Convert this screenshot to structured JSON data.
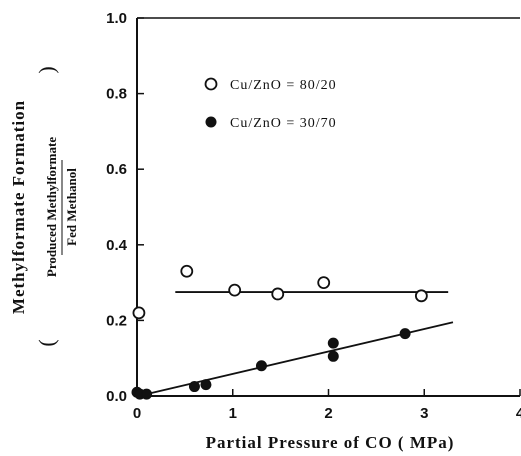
{
  "chart_data": {
    "type": "scatter",
    "title": "",
    "xlabel": "Partial Pressure of CO ( MPa)",
    "ylabel": "Methylformate Formation",
    "ylabel_ratio": {
      "open": "(",
      "numerator": "Produced Methylformate",
      "denominator": "Fed Methanol",
      "close": ")"
    },
    "xlim": [
      0,
      4
    ],
    "ylim": [
      0,
      1.0
    ],
    "xticks": [
      "0",
      "1",
      "2",
      "3",
      "4"
    ],
    "yticks": [
      "0.0",
      "0.2",
      "0.4",
      "0.6",
      "0.8",
      "1.0"
    ],
    "grid": false,
    "legend_position": "top-center",
    "series": [
      {
        "name": "Cu/ZnO = 80/20",
        "marker": "open-circle",
        "color": "#111111",
        "x": [
          0.02,
          0.52,
          1.02,
          1.47,
          1.95,
          2.97
        ],
        "y": [
          0.22,
          0.33,
          0.28,
          0.27,
          0.3,
          0.265
        ],
        "fit_line": {
          "x": [
            0.4,
            3.25
          ],
          "y": [
            0.275,
            0.275
          ]
        }
      },
      {
        "name": "Cu/ZnO = 30/70",
        "marker": "filled-circle",
        "color": "#111111",
        "x": [
          0.0,
          0.03,
          0.1,
          0.6,
          0.72,
          1.3,
          2.05,
          2.05,
          2.8
        ],
        "y": [
          0.01,
          0.005,
          0.005,
          0.025,
          0.03,
          0.08,
          0.14,
          0.105,
          0.165
        ],
        "fit_line": {
          "x": [
            0.1,
            3.3
          ],
          "y": [
            0.005,
            0.195
          ]
        }
      }
    ]
  }
}
